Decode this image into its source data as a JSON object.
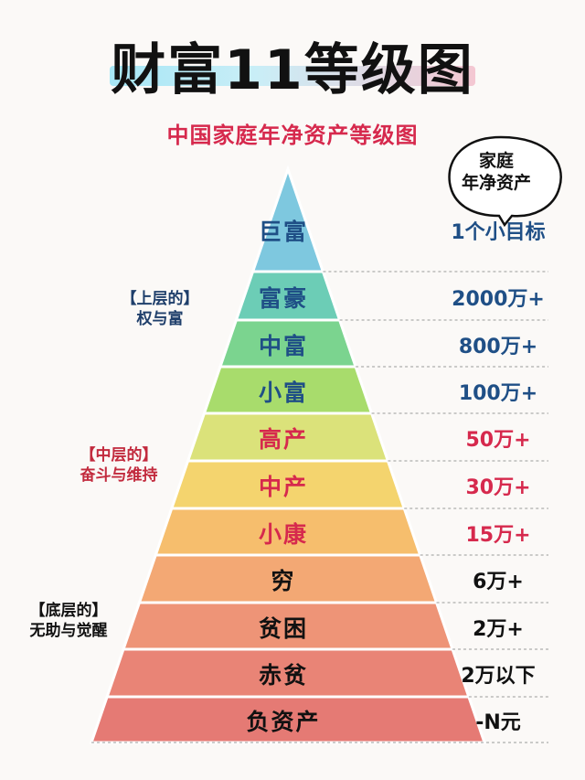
{
  "title": "财富11等级图",
  "subtitle": "中国家庭年净资产等级图",
  "bubble": {
    "line1": "家庭",
    "line2": "年净资产"
  },
  "groups": [
    {
      "line1": "【上层的】",
      "line2": "权与富"
    },
    {
      "line1": "【中层的】",
      "line2": "奋斗与维持"
    },
    {
      "line1": "【底层的】",
      "line2": "无助与觉醒"
    }
  ],
  "levels": [
    {
      "name": "巨富",
      "value": "1个小目标",
      "color": "#7ec8df"
    },
    {
      "name": "富豪",
      "value": "2000万+",
      "color": "#6ccdb6"
    },
    {
      "name": "中富",
      "value": "800万+",
      "color": "#7bd48f"
    },
    {
      "name": "小富",
      "value": "100万+",
      "color": "#a8dc6c"
    },
    {
      "name": "高产",
      "value": "50万+",
      "color": "#dbe27a"
    },
    {
      "name": "中产",
      "value": "30万+",
      "color": "#f4d46e"
    },
    {
      "name": "小康",
      "value": "15万+",
      "color": "#f6be6d"
    },
    {
      "name": "穷",
      "value": "6万+",
      "color": "#f3a874"
    },
    {
      "name": "贫困",
      "value": "2万+",
      "color": "#ee9477"
    },
    {
      "name": "赤贫",
      "value": "2万以下",
      "color": "#e98476"
    },
    {
      "name": "负资产",
      "value": "-N元",
      "color": "#e57a74"
    }
  ]
}
